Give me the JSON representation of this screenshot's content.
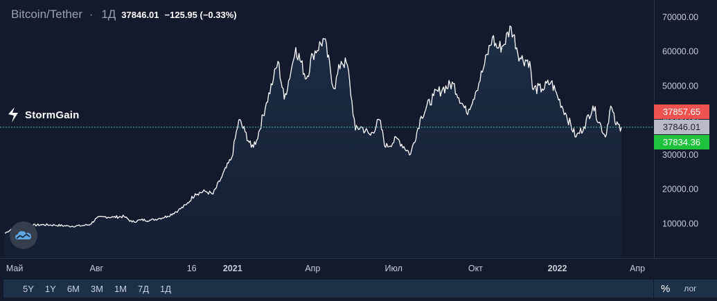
{
  "legend": {
    "symbol": "Bitcoin/Tether",
    "separator": "·",
    "timeframe": "1Д",
    "last": "37846.01",
    "change": "−125.95 (−0.33%)"
  },
  "brand": {
    "name": "StormGain"
  },
  "toolbar": {
    "ranges": [
      "5Y",
      "1Y",
      "6M",
      "3M",
      "1M",
      "7Д",
      "1Д"
    ],
    "percent_label": "%",
    "log_label": "лог"
  },
  "colors": {
    "background": "#131a2c",
    "line": "#ffffff",
    "ask": "#ef5350",
    "bid": "#1fc23d",
    "current": "#b8bcc6",
    "dotted_line": "#57b89a"
  },
  "chart_data": {
    "type": "area",
    "title": "Bitcoin/Tether",
    "xlabel": "",
    "ylabel": "",
    "ylim": [
      0,
      73000
    ],
    "grid": false,
    "y_ticks": [
      "10000.00",
      "20000.00",
      "30000.00",
      "40000.00",
      "50000.00",
      "60000.00",
      "70000.00"
    ],
    "x_ticks": [
      "Май",
      "Авг",
      "16",
      "2021",
      "Апр",
      "Июл",
      "Окт",
      "2022",
      "Апр"
    ],
    "price_labels": {
      "ask": "37857.65",
      "last": "37846.01",
      "bid": "37834.36"
    },
    "series": [
      {
        "x": [
          "2020-04-20",
          "2020-05-01",
          "2020-05-10",
          "2020-05-20",
          "2020-06-01",
          "2020-06-15",
          "2020-07-01",
          "2020-07-15",
          "2020-07-25",
          "2020-08-01",
          "2020-08-10",
          "2020-08-20",
          "2020-09-01",
          "2020-09-10",
          "2020-09-20",
          "2020-10-01",
          "2020-10-10",
          "2020-10-20",
          "2020-11-01",
          "2020-11-10",
          "2020-11-20",
          "2020-12-01",
          "2020-12-10",
          "2020-12-20",
          "2020-12-31",
          "2021-01-08",
          "2021-01-15",
          "2021-01-22",
          "2021-01-28",
          "2021-02-08",
          "2021-02-16",
          "2021-02-21",
          "2021-02-28",
          "2021-03-10",
          "2021-03-13",
          "2021-03-25",
          "2021-04-01",
          "2021-04-14",
          "2021-04-25",
          "2021-05-03",
          "2021-05-10",
          "2021-05-19",
          "2021-05-25",
          "2021-06-05",
          "2021-06-15",
          "2021-06-22",
          "2021-07-05",
          "2021-07-20",
          "2021-08-01",
          "2021-08-15",
          "2021-08-25",
          "2021-09-06",
          "2021-09-21",
          "2021-10-01",
          "2021-10-10",
          "2021-10-20",
          "2021-10-25",
          "2021-11-01",
          "2021-11-10",
          "2021-11-20",
          "2021-12-01",
          "2021-12-04",
          "2021-12-15",
          "2021-12-25",
          "2022-01-01",
          "2022-01-10",
          "2022-01-22",
          "2022-01-31",
          "2022-02-10",
          "2022-02-24",
          "2022-03-02",
          "2022-03-08",
          "2022-03-14"
        ],
        "values": [
          7000,
          8800,
          9500,
          9300,
          9500,
          9400,
          9100,
          9200,
          9600,
          11400,
          11800,
          11700,
          11900,
          10300,
          10900,
          10800,
          11300,
          12000,
          13700,
          15300,
          18500,
          19200,
          18400,
          23500,
          29000,
          40000,
          36500,
          32000,
          34000,
          45000,
          52000,
          57000,
          46000,
          57000,
          61000,
          52000,
          59000,
          63500,
          49000,
          57000,
          56000,
          37000,
          38000,
          35500,
          40000,
          32000,
          34500,
          30000,
          41000,
          47000,
          49000,
          50500,
          42000,
          48000,
          55000,
          64000,
          61000,
          61500,
          67000,
          58000,
          57000,
          49000,
          49000,
          51000,
          47000,
          42000,
          35000,
          38000,
          44000,
          35000,
          44000,
          38500,
          37846
        ]
      }
    ]
  }
}
